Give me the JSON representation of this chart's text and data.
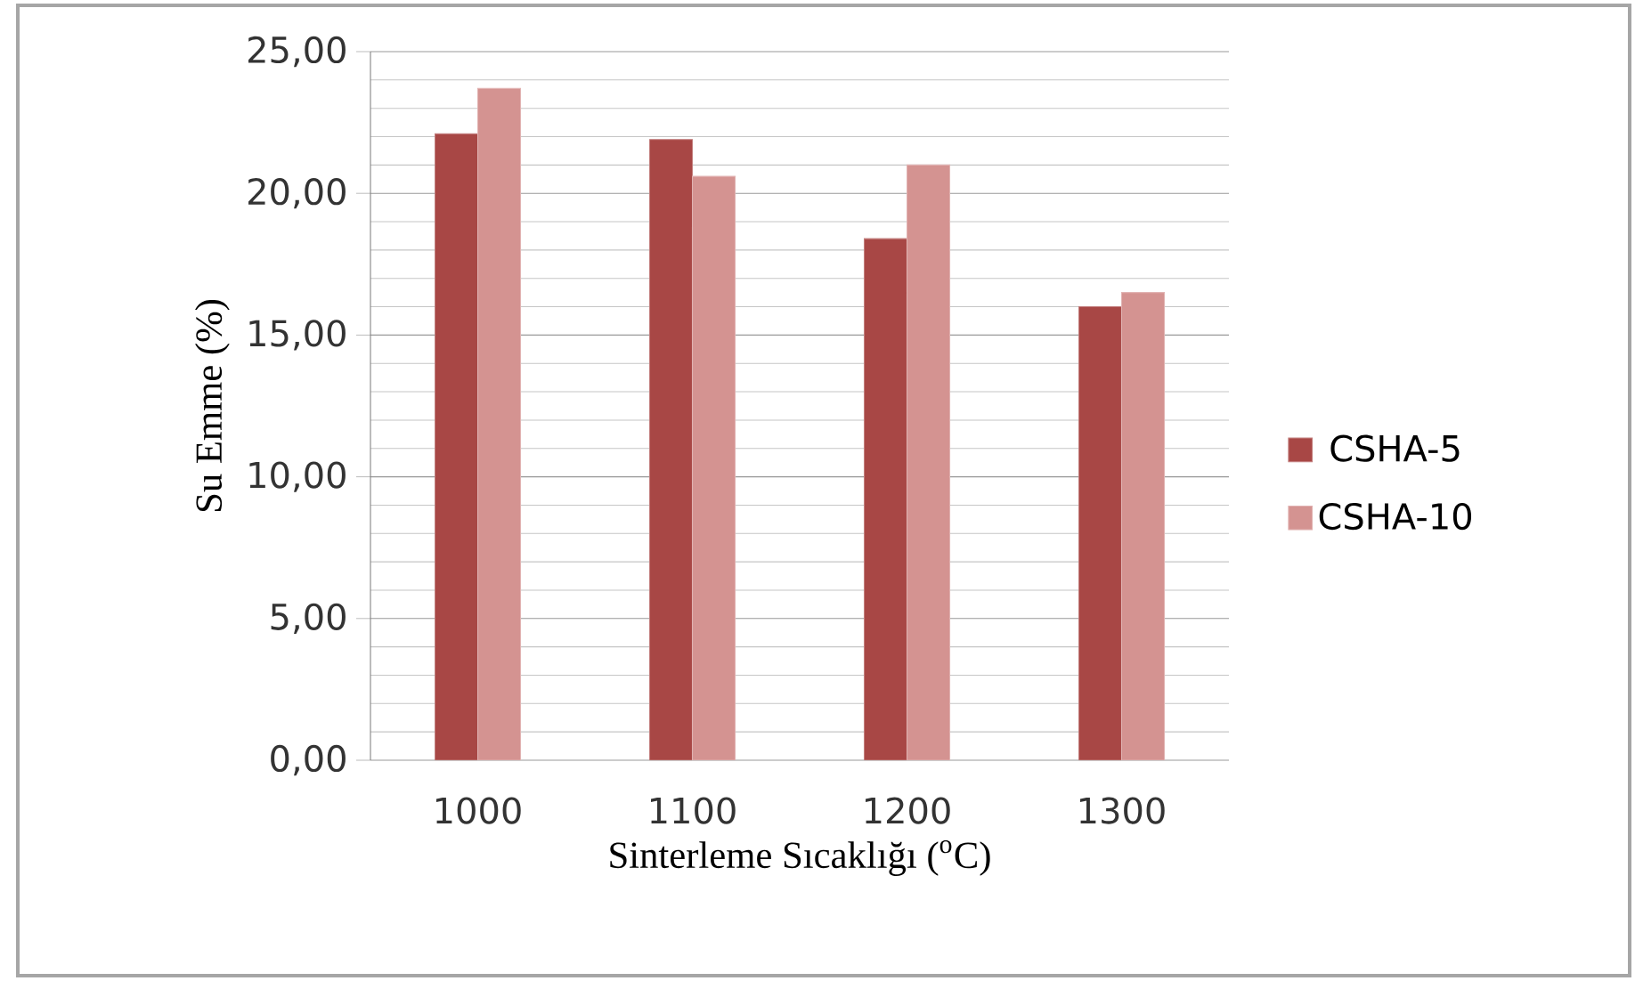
{
  "chart_data": {
    "type": "bar",
    "xlabel": "Sinterleme Sıcaklığı ($^{o}$C)",
    "ylabel": "Su Emme (%)",
    "categories": [
      "1000",
      "1100",
      "1200",
      "1300"
    ],
    "series": [
      {
        "name": "CSHA-5",
        "color": "#a84745",
        "values": [
          22.1,
          21.9,
          18.4,
          16.0
        ]
      },
      {
        "name": "CSHA-10",
        "color": "#d49391",
        "values": [
          23.7,
          20.6,
          21.0,
          16.5
        ]
      }
    ],
    "ylim": [
      0,
      25
    ],
    "yticks": [
      {
        "value": 0,
        "label": "0,00"
      },
      {
        "value": 5,
        "label": "5,00"
      },
      {
        "value": 10,
        "label": "10,00"
      },
      {
        "value": 15,
        "label": "15,00"
      },
      {
        "value": 20,
        "label": "20,00"
      },
      {
        "value": 25,
        "label": "25,00"
      }
    ],
    "grid": "y",
    "legend": "right"
  }
}
